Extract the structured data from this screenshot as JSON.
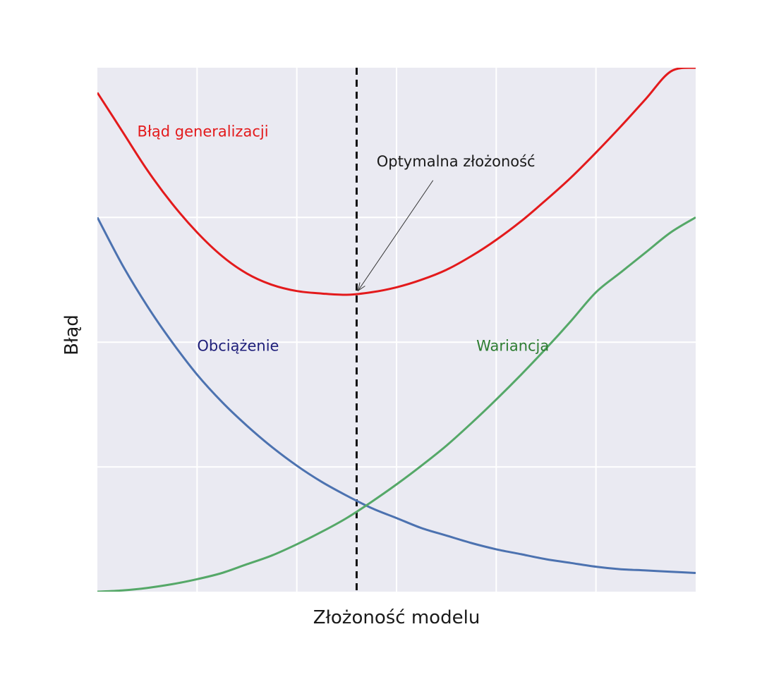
{
  "chart_data": {
    "type": "line",
    "xlabel": "Złożoność modelu",
    "ylabel": "Błąd",
    "xlim": [
      0,
      6
    ],
    "ylim": [
      0,
      4.2
    ],
    "xticks": [
      1,
      2,
      3,
      4,
      5
    ],
    "yticks": [
      1,
      2,
      3
    ],
    "tick_labels_visible": false,
    "grid": true,
    "background_color": "#eaeaf2",
    "grid_color": "#ffffff",
    "optimum_x": 2.6,
    "annotation": {
      "text": "Optymalna złożoność",
      "point": [
        2.6,
        2.39
      ],
      "text_anchor": [
        2.8,
        3.41
      ]
    },
    "series": [
      {
        "name": "Błąd generalizacji",
        "color": "#e31a1c",
        "label_color": "#e31a1c",
        "x": [
          0,
          0.25,
          0.5,
          0.75,
          1,
          1.25,
          1.5,
          1.75,
          2,
          2.25,
          2.5,
          2.75,
          3,
          3.25,
          3.5,
          3.75,
          4,
          4.25,
          4.5,
          4.75,
          5,
          5.25,
          5.5,
          5.75,
          6
        ],
        "values": [
          4.0,
          3.69,
          3.38,
          3.11,
          2.88,
          2.69,
          2.55,
          2.46,
          2.41,
          2.39,
          2.38,
          2.4,
          2.44,
          2.5,
          2.58,
          2.69,
          2.82,
          2.97,
          3.14,
          3.32,
          3.52,
          3.73,
          3.95,
          4.17,
          4.2
        ],
        "label_position": [
          0.4,
          3.65
        ]
      },
      {
        "name": "Obciążenie",
        "color": "#4c72b0",
        "label_color": "#1f1f7a",
        "x": [
          0,
          0.25,
          0.5,
          0.75,
          1,
          1.25,
          1.5,
          1.75,
          2,
          2.25,
          2.5,
          2.75,
          3,
          3.25,
          3.5,
          3.75,
          4,
          4.25,
          4.5,
          4.75,
          5,
          5.25,
          5.5,
          5.75,
          6
        ],
        "values": [
          3.0,
          2.62,
          2.29,
          2.0,
          1.74,
          1.52,
          1.33,
          1.16,
          1.01,
          0.88,
          0.77,
          0.67,
          0.59,
          0.51,
          0.45,
          0.39,
          0.34,
          0.3,
          0.26,
          0.23,
          0.2,
          0.18,
          0.17,
          0.16,
          0.15
        ],
        "label_position": [
          1.0,
          1.93
        ]
      },
      {
        "name": "Wariancja",
        "color": "#55a868",
        "label_color": "#2e7d32",
        "x": [
          0,
          0.25,
          0.5,
          0.75,
          1,
          1.25,
          1.5,
          1.75,
          2,
          2.25,
          2.5,
          2.75,
          3,
          3.25,
          3.5,
          3.75,
          4,
          4.25,
          4.5,
          4.75,
          5,
          5.25,
          5.5,
          5.75,
          6
        ],
        "values": [
          0.0,
          0.01,
          0.03,
          0.06,
          0.1,
          0.15,
          0.22,
          0.29,
          0.38,
          0.48,
          0.59,
          0.72,
          0.86,
          1.01,
          1.17,
          1.35,
          1.54,
          1.74,
          1.95,
          2.17,
          2.4,
          2.56,
          2.72,
          2.88,
          3.0
        ],
        "label_position": [
          3.8,
          1.93
        ]
      }
    ]
  }
}
